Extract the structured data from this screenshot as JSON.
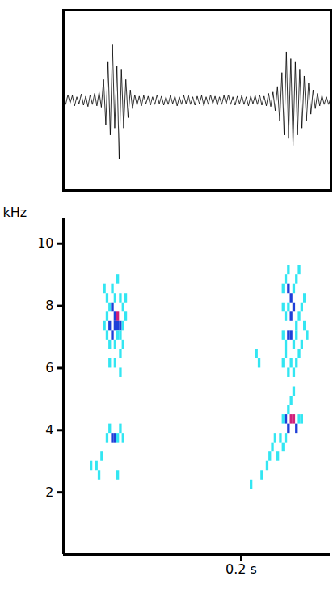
{
  "chart_data": [
    {
      "type": "line",
      "tick_labels": false,
      "color": "#000000",
      "xlim": [
        0,
        0.3
      ],
      "ylim": [
        -1.3,
        1.3
      ],
      "xticks": [],
      "yticks": [],
      "x": [
        0,
        0.0025,
        0.005,
        0.0075,
        0.01,
        0.0125,
        0.015,
        0.0175,
        0.02,
        0.0225,
        0.025,
        0.0275,
        0.03,
        0.0325,
        0.035,
        0.0375,
        0.04,
        0.0425,
        0.045,
        0.0475,
        0.05,
        0.0525,
        0.055,
        0.0575,
        0.06,
        0.0625,
        0.065,
        0.0675,
        0.07,
        0.0725,
        0.075,
        0.0775,
        0.08,
        0.0825,
        0.085,
        0.0875,
        0.09,
        0.0925,
        0.095,
        0.0975,
        0.1,
        0.1025,
        0.105,
        0.1075,
        0.11,
        0.1125,
        0.115,
        0.1175,
        0.12,
        0.1225,
        0.125,
        0.1275,
        0.13,
        0.1325,
        0.135,
        0.1375,
        0.14,
        0.1425,
        0.145,
        0.1475,
        0.15,
        0.1525,
        0.155,
        0.1575,
        0.16,
        0.1625,
        0.165,
        0.1675,
        0.17,
        0.1725,
        0.175,
        0.1775,
        0.18,
        0.1825,
        0.185,
        0.1875,
        0.19,
        0.1925,
        0.195,
        0.1975,
        0.2,
        0.2025,
        0.205,
        0.2075,
        0.21,
        0.2125,
        0.215,
        0.2175,
        0.22,
        0.2225,
        0.225,
        0.2275,
        0.23,
        0.2325,
        0.235,
        0.2375,
        0.24,
        0.2425,
        0.245,
        0.2475,
        0.25,
        0.2525,
        0.255,
        0.2575,
        0.26,
        0.2625,
        0.265,
        0.2675,
        0.27,
        0.2725,
        0.275,
        0.2775,
        0.28,
        0.2825,
        0.285,
        0.2875,
        0.29,
        0.2925,
        0.295,
        0.2975,
        0.3
      ],
      "values": [
        0.05,
        -0.06,
        0.08,
        -0.04,
        0.07,
        -0.08,
        0.05,
        -0.05,
        0.09,
        -0.07,
        0.06,
        -0.09,
        0.08,
        -0.06,
        0.1,
        -0.08,
        0.12,
        -0.1,
        0.3,
        -0.35,
        0.55,
        -0.5,
        0.8,
        -0.4,
        0.5,
        -0.85,
        0.45,
        -0.4,
        0.3,
        -0.25,
        0.15,
        -0.12,
        0.08,
        -0.07,
        0.06,
        -0.08,
        0.07,
        -0.05,
        0.06,
        -0.07,
        0.05,
        -0.06,
        0.08,
        -0.05,
        0.06,
        -0.07,
        0.05,
        -0.06,
        0.07,
        -0.05,
        0.06,
        -0.08,
        0.05,
        -0.06,
        0.07,
        -0.05,
        0.08,
        -0.06,
        0.05,
        -0.07,
        0.06,
        -0.05,
        0.07,
        -0.08,
        0.05,
        -0.06,
        0.08,
        -0.05,
        0.06,
        -0.07,
        0.05,
        -0.06,
        0.07,
        -0.05,
        0.08,
        -0.06,
        0.05,
        -0.07,
        0.06,
        -0.05,
        0.07,
        -0.06,
        0.05,
        -0.08,
        0.06,
        -0.05,
        0.07,
        -0.06,
        0.08,
        -0.07,
        0.06,
        -0.08,
        0.1,
        -0.09,
        0.12,
        -0.15,
        0.2,
        -0.3,
        0.4,
        -0.5,
        0.7,
        -0.55,
        0.6,
        -0.65,
        0.55,
        -0.5,
        0.45,
        -0.4,
        0.35,
        -0.3,
        0.25,
        -0.2,
        0.15,
        -0.12,
        0.1,
        -0.08,
        0.07,
        -0.06,
        0.05,
        -0.06,
        0.05
      ]
    },
    {
      "type": "heatmap",
      "y_label": "kHz",
      "xlim": [
        0,
        0.3
      ],
      "ylim": [
        0,
        10.8
      ],
      "xticks": [
        {
          "value": 0.2,
          "label": "0.2 s"
        }
      ],
      "yticks": [
        2,
        4,
        6,
        8,
        10
      ],
      "time_step": 0.003,
      "freq_step": 0.3,
      "levels": [
        1,
        2,
        3
      ],
      "level_colors": [
        "#33e6f2",
        "#1f3fd8",
        "#d0207a"
      ],
      "cells": [
        [
          0.045,
          8.4,
          1
        ],
        [
          0.048,
          8.1,
          1
        ],
        [
          0.051,
          7.8,
          1
        ],
        [
          0.054,
          7.8,
          2
        ],
        [
          0.057,
          7.5,
          2
        ],
        [
          0.06,
          7.5,
          3
        ],
        [
          0.063,
          7.2,
          2
        ],
        [
          0.066,
          7.8,
          1
        ],
        [
          0.069,
          8.1,
          1
        ],
        [
          0.045,
          7.2,
          1
        ],
        [
          0.048,
          7.5,
          1
        ],
        [
          0.051,
          7.2,
          2
        ],
        [
          0.054,
          6.9,
          2
        ],
        [
          0.057,
          7.2,
          2
        ],
        [
          0.06,
          7.2,
          2
        ],
        [
          0.063,
          6.9,
          1
        ],
        [
          0.066,
          7.2,
          1
        ],
        [
          0.069,
          7.5,
          1
        ],
        [
          0.048,
          6.9,
          1
        ],
        [
          0.051,
          6.6,
          1
        ],
        [
          0.057,
          6.6,
          1
        ],
        [
          0.06,
          6.9,
          1
        ],
        [
          0.063,
          6.3,
          1
        ],
        [
          0.066,
          6.6,
          1
        ],
        [
          0.051,
          6.0,
          1
        ],
        [
          0.057,
          6.0,
          1
        ],
        [
          0.063,
          5.7,
          1
        ],
        [
          0.06,
          8.7,
          1
        ],
        [
          0.054,
          8.4,
          1
        ],
        [
          0.057,
          8.1,
          1
        ],
        [
          0.063,
          8.1,
          1
        ],
        [
          0.051,
          3.9,
          1
        ],
        [
          0.054,
          3.6,
          2
        ],
        [
          0.057,
          3.6,
          2
        ],
        [
          0.06,
          3.6,
          1
        ],
        [
          0.063,
          3.9,
          1
        ],
        [
          0.066,
          3.6,
          1
        ],
        [
          0.048,
          3.6,
          1
        ],
        [
          0.036,
          2.7,
          1
        ],
        [
          0.039,
          2.4,
          1
        ],
        [
          0.042,
          3.0,
          1
        ],
        [
          0.03,
          2.7,
          1
        ],
        [
          0.06,
          2.4,
          1
        ],
        [
          0.216,
          6.3,
          1
        ],
        [
          0.219,
          6.0,
          1
        ],
        [
          0.222,
          2.4,
          1
        ],
        [
          0.228,
          2.7,
          1
        ],
        [
          0.231,
          3.0,
          1
        ],
        [
          0.234,
          3.3,
          1
        ],
        [
          0.237,
          3.6,
          1
        ],
        [
          0.24,
          3.0,
          1
        ],
        [
          0.21,
          2.1,
          1
        ],
        [
          0.246,
          8.4,
          1
        ],
        [
          0.249,
          8.7,
          1
        ],
        [
          0.252,
          8.4,
          2
        ],
        [
          0.255,
          8.1,
          2
        ],
        [
          0.258,
          8.4,
          1
        ],
        [
          0.261,
          8.7,
          1
        ],
        [
          0.264,
          9.0,
          1
        ],
        [
          0.252,
          9.0,
          1
        ],
        [
          0.246,
          7.8,
          1
        ],
        [
          0.249,
          7.5,
          1
        ],
        [
          0.252,
          7.8,
          1
        ],
        [
          0.255,
          7.5,
          2
        ],
        [
          0.258,
          7.8,
          2
        ],
        [
          0.261,
          7.2,
          1
        ],
        [
          0.264,
          7.5,
          1
        ],
        [
          0.267,
          7.8,
          1
        ],
        [
          0.246,
          6.9,
          1
        ],
        [
          0.249,
          6.6,
          1
        ],
        [
          0.252,
          6.9,
          2
        ],
        [
          0.255,
          6.9,
          2
        ],
        [
          0.258,
          6.6,
          1
        ],
        [
          0.261,
          6.9,
          1
        ],
        [
          0.264,
          6.3,
          1
        ],
        [
          0.267,
          6.6,
          1
        ],
        [
          0.246,
          6.0,
          1
        ],
        [
          0.249,
          6.3,
          1
        ],
        [
          0.252,
          5.7,
          1
        ],
        [
          0.255,
          6.0,
          1
        ],
        [
          0.258,
          5.7,
          1
        ],
        [
          0.261,
          6.0,
          1
        ],
        [
          0.258,
          5.1,
          1
        ],
        [
          0.255,
          4.8,
          1
        ],
        [
          0.27,
          8.1,
          1
        ],
        [
          0.27,
          7.2,
          1
        ],
        [
          0.273,
          6.9,
          1
        ],
        [
          0.246,
          4.2,
          1
        ],
        [
          0.249,
          4.2,
          2
        ],
        [
          0.252,
          3.9,
          2
        ],
        [
          0.255,
          4.2,
          3
        ],
        [
          0.258,
          4.2,
          3
        ],
        [
          0.261,
          3.9,
          2
        ],
        [
          0.264,
          4.2,
          1
        ],
        [
          0.267,
          4.2,
          1
        ],
        [
          0.252,
          4.5,
          1
        ],
        [
          0.249,
          3.6,
          1
        ],
        [
          0.246,
          3.3,
          1
        ],
        [
          0.243,
          3.6,
          1
        ]
      ]
    }
  ]
}
